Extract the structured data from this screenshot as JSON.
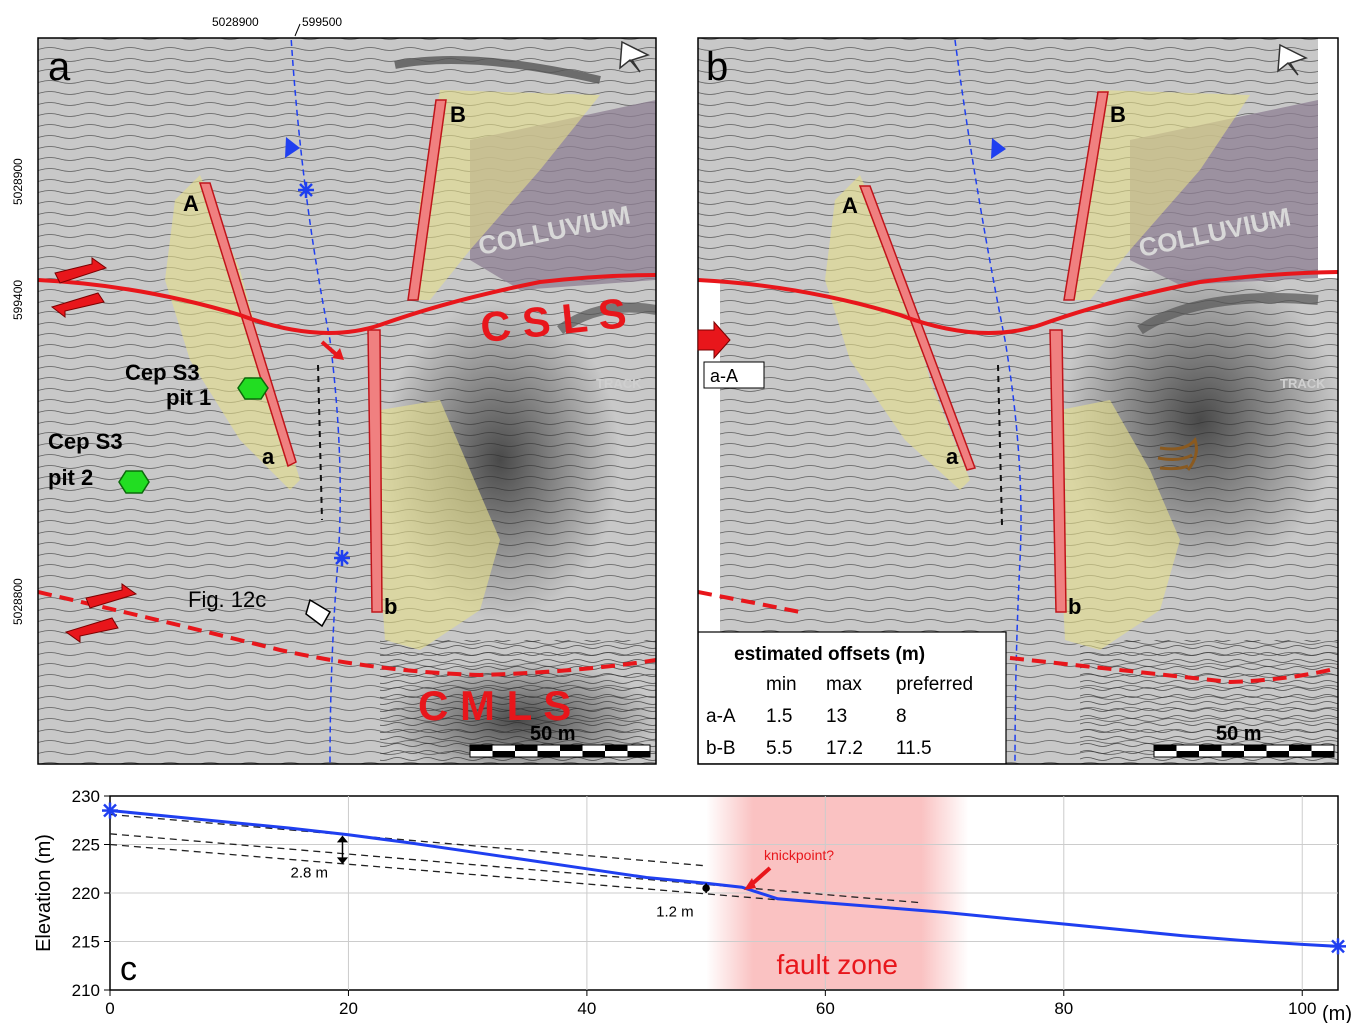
{
  "coords": {
    "top_easting": "599500",
    "top_northing": "5028900",
    "left_n1": "5028900",
    "left_e1": "599400",
    "left_n2": "5028800"
  },
  "panel_a": {
    "letter": "a",
    "labels": {
      "A": "A",
      "B": "B",
      "a": "a",
      "b": "b",
      "colluvium": "COLLUVIUM",
      "cs": "C S L S",
      "cm": "C M L S",
      "track": "TRACK",
      "pit1_l1": "Cep S3",
      "pit1_l2": "pit 1",
      "pit2_l1": "Cep S3",
      "pit2_l2": "pit 2",
      "fig12c": "Fig. 12c"
    },
    "scale": "50 m"
  },
  "panel_b": {
    "letter": "b",
    "labels": {
      "A": "A",
      "B": "B",
      "a": "a",
      "b": "b",
      "colluvium": "COLLUVIUM",
      "track": "TRACK",
      "aA_box": "a-A"
    },
    "scale": "50 m",
    "offsets": {
      "title": "estimated offsets (m)",
      "headers": [
        "min",
        "max",
        "preferred"
      ],
      "rows": [
        {
          "name": "a-A",
          "min": "1.5",
          "max": "13",
          "preferred": "8"
        },
        {
          "name": "b-B",
          "min": "5.5",
          "max": "17.2",
          "preferred": "11.5"
        }
      ]
    }
  },
  "colors": {
    "fault": "#e8161b",
    "channel": "#1f3ff0",
    "yellow": "#e6e08a",
    "pit": "#22dd22",
    "colluvium": "#8d7f93"
  },
  "profile": {
    "letter": "c",
    "ylabel": "Elevation (m)",
    "xunit": "(m)",
    "knickpoint": "knickpoint?",
    "fault_zone": "fault zone",
    "off1": "2.8 m",
    "off2": "1.2 m",
    "fault_zone_range": [
      50,
      72
    ],
    "chart_data": {
      "type": "line",
      "xlim": [
        0,
        103
      ],
      "ylim": [
        210,
        230
      ],
      "xticks": [
        "0",
        "20",
        "40",
        "60",
        "80",
        "100"
      ],
      "yticks": [
        "210",
        "215",
        "220",
        "225",
        "230"
      ],
      "series": [
        {
          "x": [
            0,
            5,
            10,
            15,
            20,
            25,
            30,
            35,
            40,
            45,
            50,
            53,
            56,
            60,
            65,
            70,
            75,
            80,
            85,
            90,
            95,
            100,
            103
          ],
          "y": [
            228.5,
            227.9,
            227.3,
            226.7,
            226.0,
            225.2,
            224.3,
            223.4,
            222.5,
            221.6,
            221.0,
            220.6,
            219.4,
            219.0,
            218.5,
            218.0,
            217.4,
            216.8,
            216.2,
            215.6,
            215.1,
            214.7,
            214.5
          ]
        }
      ]
    }
  }
}
